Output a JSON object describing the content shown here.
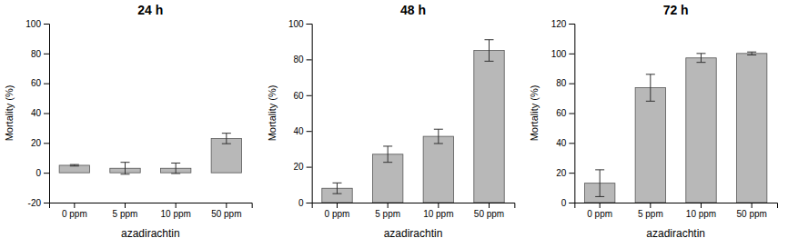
{
  "chart_data": [
    {
      "type": "bar",
      "title": "24 h",
      "categories": [
        "0 ppm",
        "5 ppm",
        "10 ppm",
        "50 ppm"
      ],
      "values": [
        5.0,
        3.0,
        3.0,
        23.0
      ],
      "errors": [
        0.5,
        4.0,
        3.5,
        3.5
      ],
      "xlabel": "azadirachtin",
      "ylabel": "Mortality (%)",
      "ylim": [
        -20,
        100
      ],
      "yticks": [
        -20,
        0,
        20,
        40,
        60,
        80,
        100
      ],
      "color": "#b8b8b8",
      "grid": false
    },
    {
      "type": "bar",
      "title": "48 h",
      "categories": [
        "0 ppm",
        "5 ppm",
        "10 ppm",
        "50 ppm"
      ],
      "values": [
        8.0,
        27.0,
        37.0,
        85.0
      ],
      "errors": [
        3.0,
        4.5,
        4.0,
        6.0
      ],
      "xlabel": "azadirachtin",
      "ylabel": "Mortality (%)",
      "ylim": [
        0,
        100
      ],
      "yticks": [
        0,
        20,
        40,
        60,
        80,
        100
      ],
      "color": "#b8b8b8",
      "grid": false
    },
    {
      "type": "bar",
      "title": "72 h",
      "categories": [
        "0 ppm",
        "5 ppm",
        "10 ppm",
        "50 ppm"
      ],
      "values": [
        13.0,
        77.0,
        97.0,
        100.0
      ],
      "errors": [
        9.0,
        9.0,
        3.0,
        1.0
      ],
      "xlabel": "azadirachtin",
      "ylabel": "Mortality (%)",
      "ylim": [
        0,
        120
      ],
      "yticks": [
        0,
        20,
        40,
        60,
        80,
        100,
        120
      ],
      "color": "#b8b8b8",
      "grid": false
    }
  ]
}
